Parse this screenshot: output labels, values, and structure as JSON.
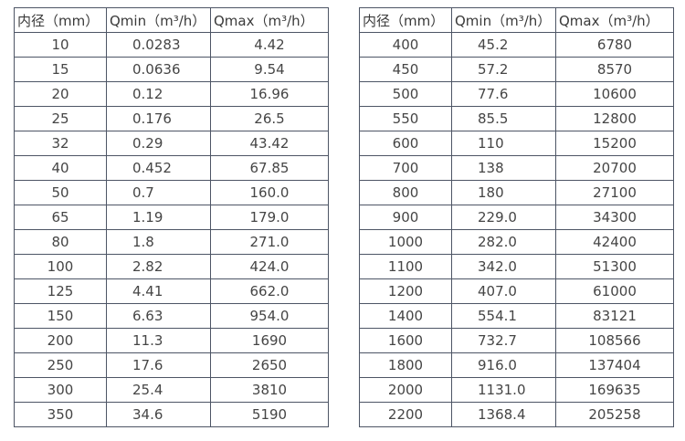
{
  "headers": [
    "内径（mm）",
    "Qmin（m³/h）",
    "Qmax（m³/h）"
  ],
  "colors": {
    "border": "#4d5565",
    "text": "#3d3d3d",
    "background": "#ffffff"
  },
  "chart_data": {
    "type": "table",
    "title": "",
    "columns": [
      "内径（mm）",
      "Qmin（m³/h）",
      "Qmax（m³/h）"
    ],
    "tables": 2
  },
  "left_table": {
    "rows": [
      [
        "10",
        "0.0283",
        "4.42"
      ],
      [
        "15",
        "0.0636",
        "9.54"
      ],
      [
        "20",
        "0.12",
        "16.96"
      ],
      [
        "25",
        "0.176",
        "26.5"
      ],
      [
        "32",
        "0.29",
        "43.42"
      ],
      [
        "40",
        "0.452",
        "67.85"
      ],
      [
        "50",
        "0.7",
        "160.0"
      ],
      [
        "65",
        "1.19",
        "179.0"
      ],
      [
        "80",
        "1.8",
        "271.0"
      ],
      [
        "100",
        "2.82",
        "424.0"
      ],
      [
        "125",
        "4.41",
        "662.0"
      ],
      [
        "150",
        "6.63",
        "954.0"
      ],
      [
        "200",
        "11.3",
        "1690"
      ],
      [
        "250",
        "17.6",
        "2650"
      ],
      [
        "300",
        "25.4",
        "3810"
      ],
      [
        "350",
        "34.6",
        "5190"
      ]
    ]
  },
  "right_table": {
    "rows": [
      [
        "400",
        "45.2",
        "6780"
      ],
      [
        "450",
        "57.2",
        "8570"
      ],
      [
        "500",
        "77.6",
        "10600"
      ],
      [
        "550",
        "85.5",
        "12800"
      ],
      [
        "600",
        "110",
        "15200"
      ],
      [
        "700",
        "138",
        "20700"
      ],
      [
        "800",
        "180",
        "27100"
      ],
      [
        "900",
        "229.0",
        "34300"
      ],
      [
        "1000",
        "282.0",
        "42400"
      ],
      [
        "1100",
        "342.0",
        "51300"
      ],
      [
        "1200",
        "407.0",
        "61000"
      ],
      [
        "1400",
        "554.1",
        "83121"
      ],
      [
        "1600",
        "732.7",
        "108566"
      ],
      [
        "1800",
        "916.0",
        "137404"
      ],
      [
        "2000",
        "1131.0",
        "169635"
      ],
      [
        "2200",
        "1368.4",
        "205258"
      ]
    ]
  }
}
